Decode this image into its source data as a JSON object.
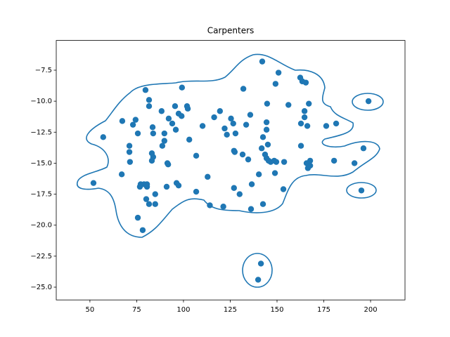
{
  "chart_data": {
    "type": "scatter",
    "title": "Carpenters",
    "color": "#1f77b4",
    "x": [
      51.9,
      57.1,
      67.3,
      67,
      71.1,
      71.1,
      71.4,
      73,
      74.4,
      75.6,
      75.6,
      77.1,
      76.7,
      78.2,
      79.7,
      78.9,
      80.1,
      80.5,
      80.5,
      81.6,
      81.6,
      81.6,
      83.5,
      83.1,
      83.8,
      83.1,
      83.8,
      84.9,
      84.9,
      88.3,
      88.7,
      89.8,
      89.8,
      91,
      91.4,
      91.8,
      92.1,
      94,
      95.5,
      95.9,
      96.3,
      97.4,
      97.4,
      99,
      99.2,
      101.9,
      102.3,
      103.1,
      106.8,
      106.8,
      110.2,
      112.9,
      114.1,
      116.4,
      119.5,
      121.3,
      122,
      123.2,
      125.4,
      126.6,
      127,
      127.4,
      127,
      127.8,
      130,
      131.6,
      132,
      133.5,
      134.6,
      135.7,
      136.5,
      136.1,
      139.9,
      140.3,
      141.4,
      141.8,
      142.1,
      142.5,
      142.5,
      143.6,
      144.4,
      144.7,
      144.4,
      144.4,
      145.1,
      145.5,
      146.6,
      148.5,
      148.9,
      149.6,
      149.2,
      150.8,
      153.4,
      153.8,
      156.1,
      162.4,
      163.5,
      162.8,
      162.8,
      164.7,
      164.7,
      165.4,
      165.8,
      166.2,
      167,
      166.5,
      167.7,
      167.7,
      176.3,
      181.6,
      180.5,
      191.4,
      196.2,
      195.1,
      198.9
    ],
    "y": [
      -16.6,
      -12.9,
      -11.6,
      -15.9,
      -13.6,
      -14.1,
      -14.9,
      -11.9,
      -11.5,
      -12.6,
      -19.4,
      -16.7,
      -16.9,
      -20.4,
      -9.1,
      -16.7,
      -17.9,
      -16.7,
      -16.9,
      -18.3,
      -9.9,
      -10.4,
      -12.1,
      -14.2,
      -14.5,
      -14.8,
      -12.6,
      -17.5,
      -18.3,
      -10.8,
      -13.6,
      -12.6,
      -13.2,
      -16.9,
      -15,
      -15.1,
      -11.4,
      -11.8,
      -10.4,
      -12.3,
      -16.6,
      -16.8,
      -11,
      -11.2,
      -8.9,
      -10.4,
      -10.6,
      -13.1,
      -14.4,
      -17.3,
      -12,
      -16.1,
      -18.4,
      -11.3,
      -10.8,
      -18.5,
      -12.2,
      -12.7,
      -11.4,
      -11.8,
      -14,
      -14.1,
      -17,
      -12.6,
      -17.5,
      -14.3,
      -9,
      -11.9,
      -14.7,
      -11.1,
      -16.7,
      -18.7,
      -24.4,
      -15.9,
      -23.1,
      -13.8,
      -6.8,
      -12.9,
      -18.3,
      -14.3,
      -14.6,
      -10.2,
      -11.7,
      -12.3,
      -13.5,
      -14.8,
      -14.9,
      -14.8,
      -15.8,
      -14.9,
      -8.6,
      -7.7,
      -17.1,
      -14.9,
      -10.3,
      -8.1,
      -8.4,
      -11.8,
      -13.6,
      -11.3,
      -10.8,
      -8.5,
      -15,
      -12,
      -10.2,
      -15.4,
      -14.8,
      -15.2,
      -12,
      -11.8,
      -14.8,
      -15,
      -13.8,
      -17.2,
      -10
    ],
    "xlim": [
      32,
      218.4
    ],
    "ylim": [
      -26.03,
      -5.1
    ],
    "xticks": [
      50,
      75,
      100,
      125,
      150,
      175,
      200
    ],
    "yticks": [
      {
        "value": -25,
        "label": "−25.0"
      },
      {
        "value": -22.5,
        "label": "−22.5"
      },
      {
        "value": -20,
        "label": "−20.0"
      },
      {
        "value": -17.5,
        "label": "−17.5"
      },
      {
        "value": -15,
        "label": "−15.0"
      },
      {
        "value": -12.5,
        "label": "−12.5"
      },
      {
        "value": -10,
        "label": "−10.0"
      },
      {
        "value": -7.5,
        "label": "−7.5"
      }
    ]
  }
}
